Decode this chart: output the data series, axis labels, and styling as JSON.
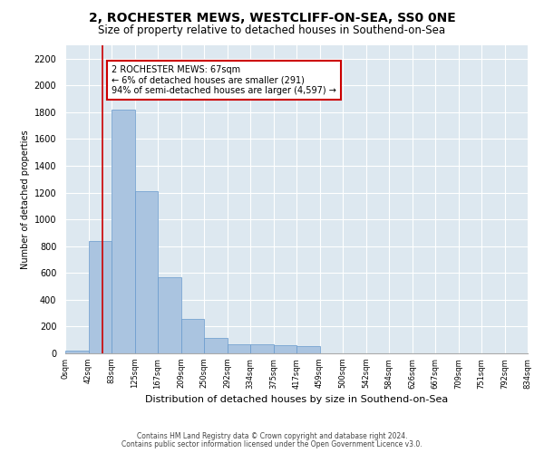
{
  "title": "2, ROCHESTER MEWS, WESTCLIFF-ON-SEA, SS0 0NE",
  "subtitle": "Size of property relative to detached houses in Southend-on-Sea",
  "xlabel": "Distribution of detached houses by size in Southend-on-Sea",
  "ylabel": "Number of detached properties",
  "bar_values": [
    20,
    840,
    1820,
    1210,
    570,
    260,
    115,
    70,
    65,
    60,
    55,
    0,
    0,
    0,
    0,
    0,
    0,
    0,
    0,
    0
  ],
  "bin_labels": [
    "0sqm",
    "42sqm",
    "83sqm",
    "125sqm",
    "167sqm",
    "209sqm",
    "250sqm",
    "292sqm",
    "334sqm",
    "375sqm",
    "417sqm",
    "459sqm",
    "500sqm",
    "542sqm",
    "584sqm",
    "626sqm",
    "667sqm",
    "709sqm",
    "751sqm",
    "792sqm",
    "834sqm"
  ],
  "bar_color": "#aac4e0",
  "bar_edgecolor": "#6699cc",
  "annotation_text": "2 ROCHESTER MEWS: 67sqm\n← 6% of detached houses are smaller (291)\n94% of semi-detached houses are larger (4,597) →",
  "annotation_box_color": "#ffffff",
  "annotation_box_edgecolor": "#cc0000",
  "ylim": [
    0,
    2300
  ],
  "yticks": [
    0,
    200,
    400,
    600,
    800,
    1000,
    1200,
    1400,
    1600,
    1800,
    2000,
    2200
  ],
  "footnote1": "Contains HM Land Registry data © Crown copyright and database right 2024.",
  "footnote2": "Contains public sector information licensed under the Open Government Licence v3.0.",
  "plot_background": "#dde8f0",
  "title_fontsize": 10,
  "subtitle_fontsize": 8.5,
  "red_line_x": 1.595
}
